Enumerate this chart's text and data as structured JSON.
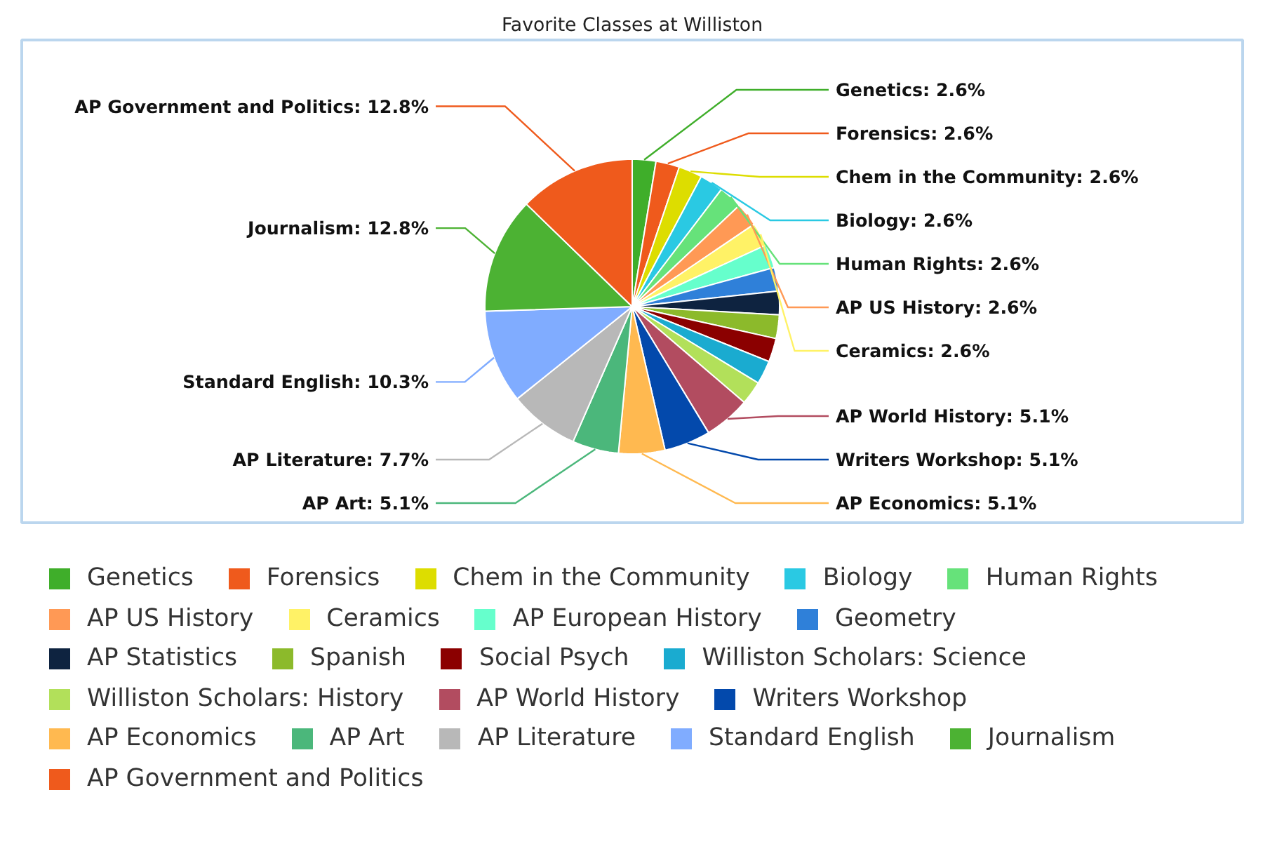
{
  "chart_data": {
    "type": "pie",
    "title": "Favorite Classes at Williston",
    "categories": [
      "Genetics",
      "Forensics",
      "Chem in the Community",
      "Biology",
      "Human Rights",
      "AP US History",
      "Ceramics",
      "AP European History",
      "Geometry",
      "AP Statistics",
      "Spanish",
      "Social Psych",
      "Williston Scholars: Science",
      "Williston Scholars: History",
      "AP World History",
      "Writers Workshop",
      "AP Economics",
      "AP Art",
      "AP Literature",
      "Standard English",
      "Journalism",
      "AP Government and Politics"
    ],
    "values": [
      2.6,
      2.6,
      2.6,
      2.6,
      2.6,
      2.6,
      2.6,
      2.6,
      2.6,
      2.6,
      2.6,
      2.6,
      2.6,
      2.6,
      5.1,
      5.1,
      5.1,
      5.1,
      7.7,
      10.3,
      12.8,
      12.8
    ],
    "colors": [
      "#3fae2a",
      "#ef5a1c",
      "#dddd00",
      "#2ac9e3",
      "#66e27a",
      "#ff9955",
      "#fff266",
      "#66ffcc",
      "#2f80d9",
      "#0e2340",
      "#8cba2b",
      "#8b0000",
      "#1aabd0",
      "#b2e05a",
      "#b24c60",
      "#0349ac",
      "#ffb950",
      "#4bb77b",
      "#b8b8b8",
      "#80acff",
      "#4cb233",
      "#ef5a1c"
    ],
    "value_labels": [
      "Genetics: 2.6%",
      "Forensics: 2.6%",
      "Chem in the Community: 2.6%",
      "Biology: 2.6%",
      "Human Rights: 2.6%",
      "AP US History: 2.6%",
      "Ceramics: 2.6%",
      null,
      null,
      null,
      null,
      null,
      null,
      null,
      "AP World History: 5.1%",
      "Writers Workshop: 5.1%",
      "AP Economics: 5.1%",
      "AP Art: 5.1%",
      "AP Literature: 7.7%",
      "Standard English: 10.3%",
      "Journalism: 12.8%",
      "AP Government and Politics: 12.8%"
    ],
    "legend": "bottom"
  }
}
